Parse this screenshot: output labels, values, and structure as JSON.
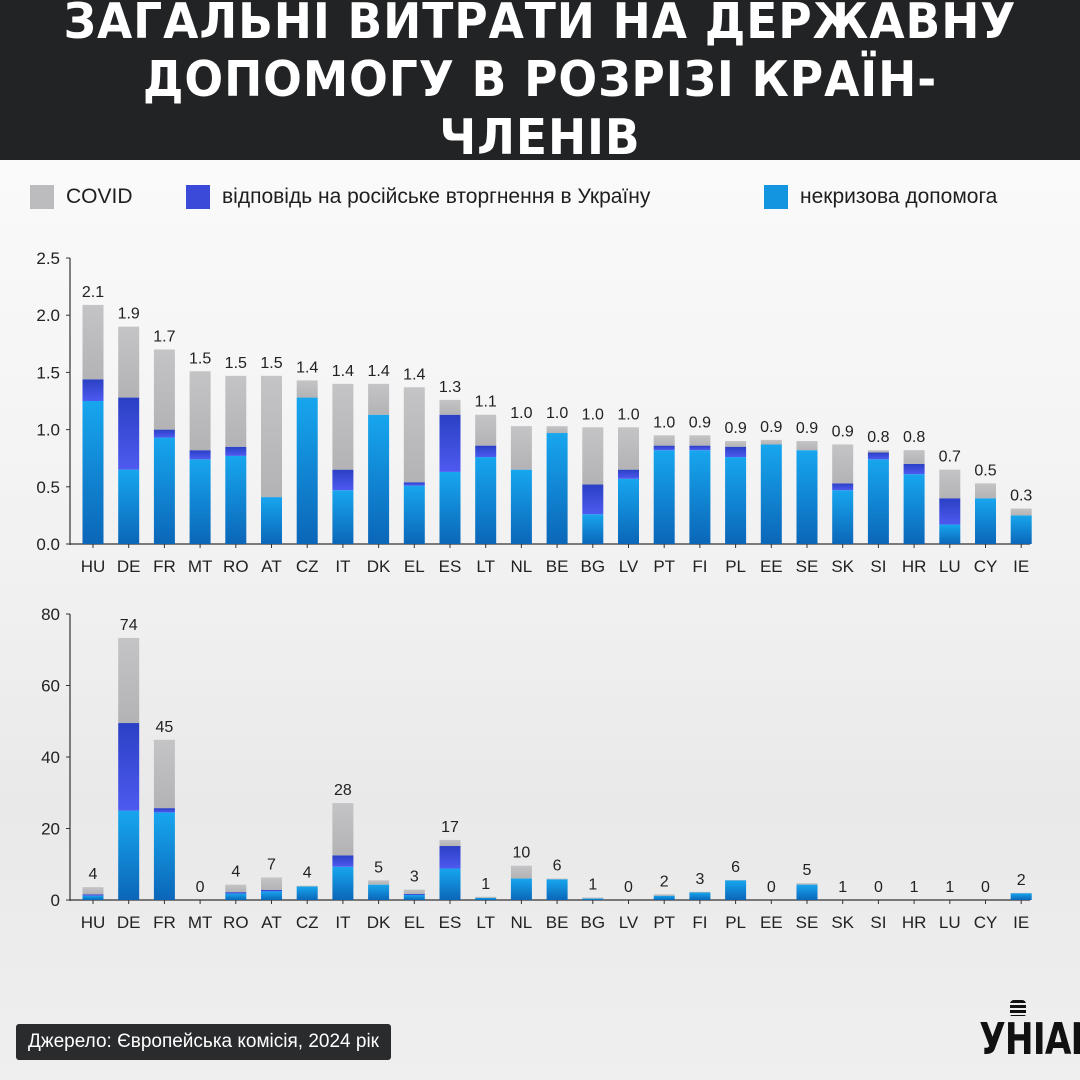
{
  "header": {
    "title_line1": "ЗАГАЛЬНІ ВИТРАТИ НА ДЕРЖАВНУ",
    "title_line2": "ДОПОМОГУ В РОЗРІЗІ КРАЇН-ЧЛЕНІВ"
  },
  "legend": {
    "covid": "COVID",
    "russia": "відповідь на російське вторгнення в Україну",
    "noncrisis": "некризова допомога"
  },
  "colors": {
    "covid": "#bcbcbe",
    "russia": "#3b4ad8",
    "noncrisis": "#1396df"
  },
  "footer": {
    "source": "Джерело: Європейська комісія, 2024 рік",
    "logo": "УНІАН"
  },
  "chart_data": [
    {
      "type": "bar",
      "stacked": true,
      "categories": [
        "HU",
        "DE",
        "FR",
        "MT",
        "RO",
        "AT",
        "CZ",
        "IT",
        "DK",
        "EL",
        "ES",
        "LT",
        "NL",
        "BE",
        "BG",
        "LV",
        "PT",
        "FI",
        "PL",
        "EE",
        "SE",
        "SK",
        "SI",
        "HR",
        "LU",
        "CY",
        "IE"
      ],
      "ylim": [
        0,
        2.5
      ],
      "yticks": [
        "0.0",
        "0.5",
        "1.0",
        "1.5",
        "2.0",
        "2.5"
      ],
      "grid": false,
      "legend_position": "top",
      "totals_labels": [
        "2.1",
        "1.9",
        "1.7",
        "1.5",
        "1.5",
        "1.5",
        "1.4",
        "1.4",
        "1.4",
        "1.4",
        "1.3",
        "1.1",
        "1.0",
        "1.0",
        "1.0",
        "1.0",
        "1.0",
        "0.9",
        "0.9",
        "0.9",
        "0.9",
        "0.9",
        "0.8",
        "0.8",
        "0.7",
        "0.5",
        "0.3"
      ],
      "series": [
        {
          "key": "noncrisis",
          "values": [
            1.25,
            0.65,
            0.93,
            0.74,
            0.77,
            0.41,
            1.28,
            0.47,
            1.13,
            0.51,
            0.63,
            0.76,
            0.65,
            0.97,
            0.26,
            0.57,
            0.82,
            0.82,
            0.76,
            0.87,
            0.82,
            0.47,
            0.74,
            0.61,
            0.17,
            0.4,
            0.25
          ]
        },
        {
          "key": "russia",
          "values": [
            0.19,
            0.63,
            0.07,
            0.08,
            0.08,
            0.0,
            0.0,
            0.18,
            0.0,
            0.03,
            0.5,
            0.1,
            0.0,
            0.0,
            0.26,
            0.08,
            0.04,
            0.04,
            0.09,
            0.0,
            0.0,
            0.06,
            0.06,
            0.09,
            0.23,
            0.0,
            0.0
          ]
        },
        {
          "key": "covid",
          "values": [
            0.65,
            0.62,
            0.7,
            0.69,
            0.62,
            1.06,
            0.15,
            0.75,
            0.27,
            0.83,
            0.13,
            0.27,
            0.38,
            0.06,
            0.5,
            0.37,
            0.09,
            0.09,
            0.05,
            0.04,
            0.08,
            0.34,
            0.02,
            0.12,
            0.25,
            0.13,
            0.06
          ]
        }
      ]
    },
    {
      "type": "bar",
      "stacked": true,
      "categories": [
        "HU",
        "DE",
        "FR",
        "MT",
        "RO",
        "AT",
        "CZ",
        "IT",
        "DK",
        "EL",
        "ES",
        "LT",
        "NL",
        "BE",
        "BG",
        "LV",
        "PT",
        "FI",
        "PL",
        "EE",
        "SE",
        "SK",
        "SI",
        "HR",
        "LU",
        "CY",
        "IE"
      ],
      "ylim": [
        0,
        80
      ],
      "yticks": [
        "0",
        "20",
        "40",
        "60",
        "80"
      ],
      "grid": false,
      "totals_labels": [
        "4",
        "74",
        "45",
        "0",
        "4",
        "7",
        "4",
        "28",
        "5",
        "3",
        "17",
        "1",
        "10",
        "6",
        "1",
        "0",
        "2",
        "3",
        "6",
        "0",
        "5",
        "1",
        "0",
        "1",
        "1",
        "0",
        "2"
      ],
      "series": [
        {
          "key": "noncrisis",
          "values": [
            1.2,
            25,
            24.5,
            0,
            1.8,
            2.4,
            3.8,
            9.3,
            4.3,
            1.4,
            8.8,
            0.6,
            6,
            5.8,
            0.4,
            0,
            1.2,
            2.1,
            5.5,
            0,
            4.3,
            0,
            0,
            0,
            0,
            0,
            1.9
          ]
        },
        {
          "key": "russia",
          "values": [
            0.4,
            24.5,
            1.2,
            0,
            0.4,
            0.4,
            0,
            3.2,
            0,
            0.3,
            6.3,
            0,
            0,
            0,
            0,
            0,
            0,
            0,
            0,
            0,
            0,
            0,
            0,
            0,
            0,
            0,
            0
          ]
        },
        {
          "key": "covid",
          "values": [
            2.0,
            23.8,
            19.1,
            0,
            2.1,
            3.5,
            0.2,
            14.6,
            1.2,
            1.2,
            1.7,
            0.3,
            3.6,
            0.2,
            0.3,
            0,
            0.4,
            0.2,
            0.1,
            0,
            0.4,
            0,
            0,
            0,
            0,
            0,
            0.1
          ]
        }
      ]
    }
  ]
}
